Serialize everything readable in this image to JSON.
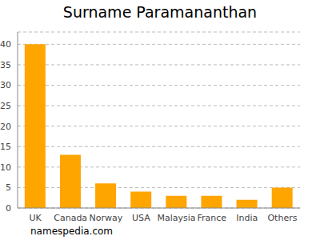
{
  "chart_data": {
    "type": "bar",
    "title": "Surname Paramananthan",
    "annotation": "namespedia.com",
    "categories": [
      "UK",
      "Canada",
      "Norway",
      "USA",
      "Malaysia",
      "France",
      "India",
      "Others"
    ],
    "values": [
      40,
      13,
      6,
      4,
      3,
      3,
      2,
      5
    ],
    "color": "#ffa500",
    "ylim": [
      0,
      43
    ],
    "yticks": [
      0,
      5,
      10,
      15,
      20,
      25,
      30,
      35,
      40
    ],
    "grid": true
  }
}
